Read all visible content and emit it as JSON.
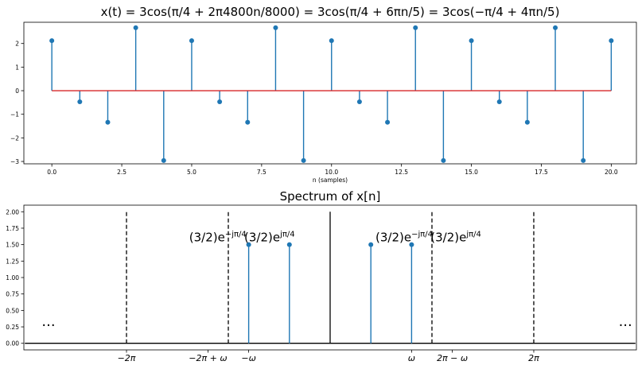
{
  "figure": {
    "top_title_parts": [
      "x(t) = 3cos(π/4 + 2π4800n/8000) = 3cos(π/4 + 6πn/5) = 3cos(−π/4 + 4πn/5)"
    ],
    "bottom_title": "Spectrum of x[n]"
  },
  "colors": {
    "stem": "#1f77b4",
    "baseline_top": "#d62728",
    "baseline_bottom": "#000000",
    "axes": "#000000"
  },
  "chart_data": [
    {
      "type": "stem",
      "title": "x(t) = 3cos(π/4 + 2π4800n/8000) = 3cos(π/4 + 6πn/5) = 3cos(−π/4 + 4πn/5)",
      "xlabel": "n (samples)",
      "ylabel": "",
      "xlim": [
        -1,
        20.9
      ],
      "ylim": [
        -3.1,
        2.9
      ],
      "xticks": [
        0,
        2.5,
        5,
        7.5,
        10,
        12.5,
        15,
        17.5,
        20
      ],
      "xtick_labels": [
        "0.0",
        "2.5",
        "5.0",
        "7.5",
        "10.0",
        "12.5",
        "15.0",
        "17.5",
        "20.0"
      ],
      "yticks": [
        -3,
        -2,
        -1,
        0,
        1,
        2
      ],
      "ytick_labels": [
        "−3",
        "−2",
        "−1",
        "0",
        "1",
        "2"
      ],
      "x": [
        0,
        1,
        2,
        3,
        4,
        5,
        6,
        7,
        8,
        9,
        10,
        11,
        12,
        13,
        14,
        15,
        16,
        17,
        18,
        19,
        20
      ],
      "values": [
        2.12,
        -0.47,
        -1.34,
        2.67,
        -2.96,
        2.12,
        -0.47,
        -1.34,
        2.67,
        -2.96,
        2.12,
        -0.47,
        -1.34,
        2.67,
        -2.96,
        2.12,
        -0.47,
        -1.34,
        2.67,
        -2.96,
        2.12
      ],
      "grid": false
    },
    {
      "type": "stem",
      "title": "Spectrum of x[n]",
      "xlim": [
        -9.45,
        9.45
      ],
      "ylim": [
        -0.1,
        2.1
      ],
      "yticks": [
        0,
        0.25,
        0.5,
        0.75,
        1.0,
        1.25,
        1.5,
        1.75,
        2.0
      ],
      "ytick_labels": [
        "0.00",
        "0.25",
        "0.50",
        "0.75",
        "1.00",
        "1.25",
        "1.50",
        "1.75",
        "2.00"
      ],
      "xticks": [
        -6.2832,
        -2.5133,
        -3.7699,
        3.7699,
        2.5133,
        6.2832
      ],
      "xtick_labels": [
        "−2π",
        "−ω",
        "−2π + ω",
        "2π − ω",
        "ω",
        "2π"
      ],
      "x": [
        -2.5133,
        -1.2566,
        1.2566,
        2.5133
      ],
      "values": [
        1.5,
        1.5,
        1.5,
        1.5
      ],
      "baseline_x": [
        -9.42,
        9.42
      ],
      "dashed_lines_x": [
        -6.2832,
        -3.1416,
        3.1416,
        6.2832
      ],
      "solid_line_x": 0,
      "vline_height": 2.0,
      "annotations": [
        {
          "text_base": "(3/2)e",
          "text_exp": "−jπ/4",
          "x": -4.35,
          "y": 1.55
        },
        {
          "text_base": "(3/2)e",
          "text_exp": "jπ/4",
          "x": -2.65,
          "y": 1.55
        },
        {
          "text_base": "(3/2)e",
          "text_exp": "−jπ/4",
          "x": 1.4,
          "y": 1.55
        },
        {
          "text_base": "(3/2)e",
          "text_exp": "jπ/4",
          "x": 3.1,
          "y": 1.55
        },
        {
          "text_base": "...",
          "text_exp": "",
          "x": -8.9,
          "y": 0.26
        },
        {
          "text_base": "...",
          "text_exp": "",
          "x": 8.9,
          "y": 0.26
        }
      ],
      "grid": false
    }
  ]
}
